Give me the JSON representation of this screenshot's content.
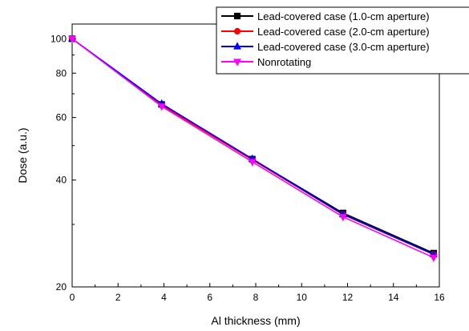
{
  "chart_data": {
    "type": "line",
    "xlabel": "Al thickness (mm)",
    "ylabel": "Dose (a.u.)",
    "xlim": [
      0,
      16
    ],
    "ylim": [
      20,
      110
    ],
    "y_scale": "log",
    "x_ticks": [
      0,
      2,
      4,
      6,
      8,
      10,
      12,
      14,
      16
    ],
    "y_ticks": [
      20,
      40,
      60,
      80,
      100
    ],
    "grid": false,
    "legend_position": "top-right",
    "x": [
      0,
      3.9,
      7.85,
      11.8,
      15.75
    ],
    "series": [
      {
        "name": "Lead-covered case (1.0-cm aperture)",
        "color": "#000000",
        "marker": "square",
        "values": [
          100,
          65.3,
          45.8,
          32.3,
          24.9
        ]
      },
      {
        "name": "Lead-covered case (2.0-cm aperture)",
        "color": "#ff0000",
        "marker": "circle",
        "values": [
          100,
          65.0,
          45.6,
          32.0,
          24.7
        ]
      },
      {
        "name": "Lead-covered case (3.0-cm aperture)",
        "color": "#0000ff",
        "marker": "triangle-up",
        "values": [
          100,
          65.6,
          45.9,
          32.0,
          24.7
        ]
      },
      {
        "name": "Nonrotating",
        "color": "#ff00ff",
        "marker": "triangle-down",
        "values": [
          100,
          64.5,
          45.0,
          31.5,
          24.2
        ]
      }
    ]
  }
}
